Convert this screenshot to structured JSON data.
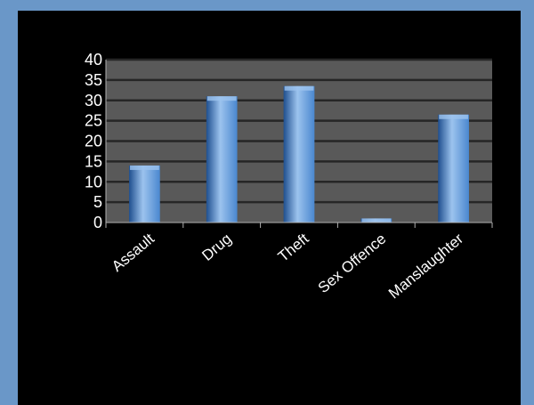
{
  "chart_data": {
    "type": "bar",
    "title": "",
    "xlabel": "",
    "ylabel": "",
    "categories": [
      "Assault",
      "Drug",
      "Theft",
      "Sex Offence",
      "Manslaughter"
    ],
    "values": [
      14,
      31,
      33.5,
      1,
      26.5
    ],
    "ylim": [
      0,
      40
    ],
    "yticks": [
      "0",
      "5",
      "10",
      "15",
      "20",
      "25",
      "30",
      "35",
      "40"
    ],
    "grid": true,
    "legend": "none",
    "colors": {
      "frame": "#6a97c8",
      "background": "#000000",
      "plot_area": "#595959",
      "gridline": "#262626",
      "bar_light": "#9cc3ee",
      "bar_mid": "#4a87cf",
      "bar_dark": "#1f4f8f",
      "text": "#ffffff"
    }
  }
}
